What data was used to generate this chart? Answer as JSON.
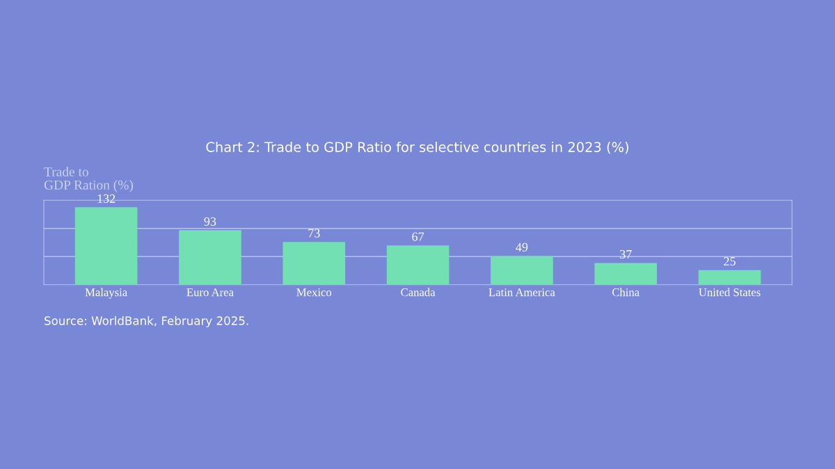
{
  "chart_data": {
    "type": "bar",
    "title": "Chart 2: Trade to GDP Ratio for selective countries in 2023 (%)",
    "ylabel": "Trade to\nGDP Ration (%)",
    "categories": [
      "Malaysia",
      "Euro Area",
      "Mexico",
      "Canada",
      "Latin America",
      "China",
      "United States"
    ],
    "values": [
      132,
      93,
      73,
      67,
      49,
      37,
      25
    ],
    "color": "#72e0b2",
    "data_labels": true,
    "ylim": [
      0,
      144
    ],
    "tick_labels": "x",
    "ref_lines": [
      {
        "axis": "y",
        "value": 48,
        "color": "#b6c2f0"
      },
      {
        "axis": "y",
        "value": 96,
        "color": "#b6c2f0"
      }
    ],
    "annotations": [
      "Source: WorldBank, February 2025."
    ]
  }
}
